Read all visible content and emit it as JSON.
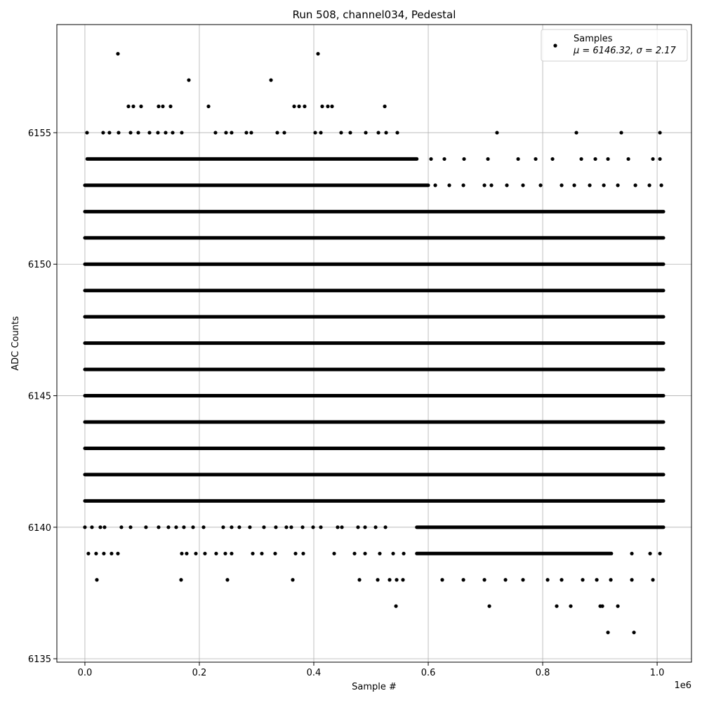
{
  "chart_data": {
    "type": "scatter",
    "title": "Run 508, channel034, Pedestal",
    "x_label": "Sample #",
    "y_label": "ADC Counts",
    "x_offset_label": "1e6",
    "series": [
      {
        "name": "Samples",
        "stats": "μ = 6146.32, σ = 2.17",
        "color": "#000000",
        "dense_runs": [
          {
            "y": 6154,
            "x": [
              4000,
              580000
            ]
          },
          {
            "y": 6153,
            "x": [
              0,
              600000
            ]
          },
          {
            "y": 6152,
            "x": [
              0,
              1011000
            ]
          },
          {
            "y": 6151,
            "x": [
              0,
              1011000
            ]
          },
          {
            "y": 6150,
            "x": [
              0,
              1011000
            ]
          },
          {
            "y": 6149,
            "x": [
              0,
              1011000
            ]
          },
          {
            "y": 6148,
            "x": [
              0,
              1011000
            ]
          },
          {
            "y": 6147,
            "x": [
              0,
              1011000
            ]
          },
          {
            "y": 6146,
            "x": [
              0,
              1011000
            ]
          },
          {
            "y": 6145,
            "x": [
              0,
              1011000
            ]
          },
          {
            "y": 6144,
            "x": [
              0,
              1011000
            ]
          },
          {
            "y": 6143,
            "x": [
              0,
              1011000
            ]
          },
          {
            "y": 6142,
            "x": [
              0,
              1011000
            ]
          },
          {
            "y": 6141,
            "x": [
              0,
              1011000
            ]
          },
          {
            "y": 6140,
            "x": [
              580000,
              1011000
            ]
          },
          {
            "y": 6139,
            "x": [
              580000,
              920000
            ]
          }
        ],
        "sparse_rows": [
          {
            "y": 6158,
            "x": [
              57700,
              407400
            ]
          },
          {
            "y": 6157,
            "x": [
              181600,
              325200
            ]
          },
          {
            "y": 6156,
            "x": [
              76100,
              84700,
              98200,
              128800,
              136200,
              149700,
              216000,
              365700,
              374300,
              384000,
              414700,
              424500,
              431900,
              524000
            ]
          },
          {
            "y": 6155,
            "x": [
              3700,
              31900,
              42900,
              58900,
              79800,
              93300,
              112900,
              127600,
              141100,
              153400,
              169300,
              228200,
              246600,
              256400,
              282200,
              290800,
              336200,
              348500,
              402500,
              412300,
              447800,
              463800,
              490800,
              512900,
              526400,
              546000,
              720200,
              858900,
              937400,
              1004900
            ]
          },
          {
            "y": 6154,
            "x": [
              604900,
              628200,
              662600,
              704300,
              757100,
              787700,
              817200,
              867500,
              892000,
              914100,
              949700,
              992600,
              1004900
            ]
          },
          {
            "y": 6153,
            "x": [
              612300,
              636800,
              661400,
              698200,
              710400,
              737400,
              765600,
              796300,
              833100,
              855200,
              882200,
              906800,
              931300,
              962000,
              986500,
              1007400
            ]
          },
          {
            "y": 6140,
            "x": [
              0,
              12300,
              27000,
              34400,
              63800,
              79800,
              106700,
              128800,
              146000,
              159500,
              173000,
              189000,
              207400,
              241700,
              256400,
              269900,
              288300,
              312900,
              333700,
              352100,
              360700,
              380400,
              398800,
              412300,
              441700,
              449100,
              477300,
              489600,
              508000,
              525200
            ]
          },
          {
            "y": 6139,
            "x": [
              6100,
              19600,
              33100,
              46600,
              57700,
              169300,
              177900,
              193900,
              209800,
              229400,
              245400,
              256400,
              293300,
              309200,
              332500,
              368100,
              381600,
              435600,
              471200,
              489600,
              515300,
              538700,
              557100,
              955800,
              987700,
              1004900
            ]
          },
          {
            "y": 6138,
            "x": [
              20900,
              168100,
              249100,
              363200,
              479800,
              511700,
              532500,
              544800,
              555800,
              624500,
              661400,
              698200,
              735000,
              765600,
              808600,
              833100,
              869900,
              894500,
              919000,
              955800,
              992600
            ]
          },
          {
            "y": 6137,
            "x": [
              543600,
              706800,
              824500,
              849000,
              900600,
              904300,
              931300
            ]
          },
          {
            "y": 6136,
            "x": [
              914100,
              959500
            ]
          }
        ]
      }
    ],
    "xlim": [
      -49000,
      1060000
    ],
    "ylim": [
      6134.87,
      6159.11
    ],
    "xticks": [
      {
        "value": 0,
        "label": "0.0"
      },
      {
        "value": 200000,
        "label": "0.2"
      },
      {
        "value": 400000,
        "label": "0.4"
      },
      {
        "value": 600000,
        "label": "0.6"
      },
      {
        "value": 800000,
        "label": "0.8"
      },
      {
        "value": 1000000,
        "label": "1.0"
      }
    ],
    "yticks": [
      6135,
      6140,
      6145,
      6150,
      6155
    ],
    "grid": true,
    "legend": "upper right"
  }
}
